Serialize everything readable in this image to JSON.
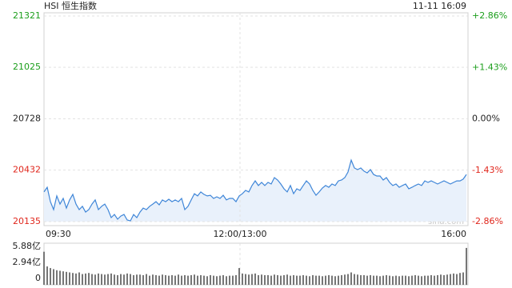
{
  "chart_data": [
    {
      "type": "line",
      "title": "HSI 恒生指数",
      "subtitle": "11-11 16:09",
      "annotation": "sina.com",
      "color": "#3f86d8",
      "fill_color": "#e9f1fb",
      "up_color": "#1b9e1b",
      "down_color": "#e0261c",
      "neutral_color": "#222222",
      "grid": true,
      "values": [
        20306,
        20333,
        20250,
        20204,
        20283,
        20236,
        20269,
        20213,
        20260,
        20292,
        20236,
        20204,
        20223,
        20190,
        20204,
        20236,
        20260,
        20204,
        20223,
        20236,
        20204,
        20158,
        20176,
        20149,
        20167,
        20176,
        20144,
        20139,
        20176,
        20158,
        20190,
        20213,
        20204,
        20223,
        20236,
        20250,
        20232,
        20260,
        20250,
        20264,
        20250,
        20260,
        20250,
        20269,
        20204,
        20223,
        20260,
        20296,
        20283,
        20306,
        20292,
        20283,
        20287,
        20269,
        20278,
        20269,
        20287,
        20260,
        20269,
        20269,
        20250,
        20283,
        20296,
        20315,
        20306,
        20343,
        20370,
        20343,
        20361,
        20343,
        20361,
        20352,
        20389,
        20375,
        20352,
        20324,
        20306,
        20343,
        20296,
        20324,
        20315,
        20343,
        20370,
        20352,
        20315,
        20287,
        20306,
        20329,
        20343,
        20333,
        20352,
        20343,
        20370,
        20375,
        20389,
        20421,
        20490,
        20444,
        20435,
        20444,
        20426,
        20416,
        20435,
        20407,
        20398,
        20398,
        20375,
        20389,
        20361,
        20343,
        20352,
        20333,
        20343,
        20352,
        20324,
        20333,
        20343,
        20352,
        20343,
        20370,
        20361,
        20370,
        20361,
        20352,
        20361,
        20370,
        20361,
        20352,
        20361,
        20370,
        20370,
        20380,
        20407
      ],
      "xlim": [
        0,
        132.5
      ],
      "xticks": [
        {
          "value": 0,
          "label": "09:30"
        },
        {
          "value": 61.25,
          "label": "12:00/13:00"
        },
        {
          "value": 132.5,
          "label": "16:00"
        }
      ],
      "ylim": [
        20135,
        21321
      ],
      "yticks": [
        21321,
        21025,
        20728,
        20432,
        20135
      ],
      "y2lim": [
        -2.86,
        2.86
      ],
      "y2ticks": [
        {
          "value": 2.86,
          "label": "+2.86%"
        },
        {
          "value": 1.43,
          "label": "+1.43%"
        },
        {
          "value": 0,
          "label": "0.00%"
        },
        {
          "value": -1.43,
          "label": "-1.43%"
        },
        {
          "value": -2.86,
          "label": "-2.86%"
        }
      ]
    },
    {
      "type": "bar",
      "color": "#555555",
      "values": [
        4.9,
        2.2,
        1.9,
        1.7,
        1.5,
        1.4,
        1.3,
        1.2,
        1.1,
        1.0,
        0.9,
        1.1,
        0.8,
        0.9,
        1.0,
        0.8,
        0.7,
        0.9,
        0.8,
        0.7,
        0.8,
        0.9,
        0.7,
        0.6,
        0.8,
        0.7,
        0.9,
        0.8,
        0.6,
        0.7,
        0.7,
        0.6,
        0.8,
        0.5,
        0.7,
        0.6,
        0.5,
        0.7,
        0.6,
        0.5,
        0.6,
        0.5,
        0.7,
        0.5,
        0.6,
        0.5,
        0.6,
        0.7,
        0.5,
        0.6,
        0.5,
        0.4,
        0.6,
        0.5,
        0.4,
        0.5,
        0.6,
        0.4,
        0.5,
        0.5,
        0.6,
        1.9,
        0.9,
        0.8,
        0.7,
        0.8,
        0.9,
        0.6,
        0.7,
        0.6,
        0.6,
        0.5,
        0.7,
        0.6,
        0.5,
        0.6,
        0.7,
        0.5,
        0.6,
        0.5,
        0.5,
        0.6,
        0.5,
        0.4,
        0.6,
        0.5,
        0.5,
        0.4,
        0.5,
        0.6,
        0.5,
        0.4,
        0.5,
        0.6,
        0.7,
        0.8,
        1.1,
        0.8,
        0.7,
        0.6,
        0.6,
        0.5,
        0.6,
        0.5,
        0.5,
        0.4,
        0.5,
        0.6,
        0.5,
        0.4,
        0.5,
        0.4,
        0.5,
        0.5,
        0.4,
        0.5,
        0.6,
        0.5,
        0.4,
        0.5,
        0.5,
        0.6,
        0.5,
        0.6,
        0.7,
        0.6,
        0.7,
        0.8,
        0.9,
        0.8,
        1.0,
        1.1,
        5.6
      ],
      "xlim": [
        0,
        132.5
      ],
      "ylim": [
        0,
        5.88
      ],
      "yticks": [
        {
          "value": 5.88,
          "label": "5.88亿"
        },
        {
          "value": 2.94,
          "label": "2.94亿"
        },
        0
      ]
    }
  ]
}
